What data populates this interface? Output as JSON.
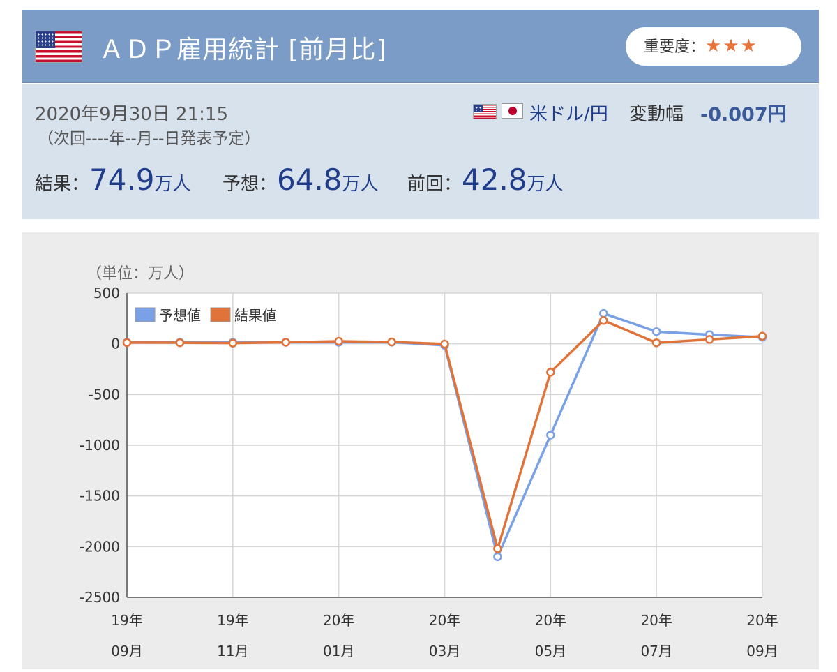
{
  "header": {
    "title": "ＡＤＰ雇用統計 [前月比]",
    "importance_label": "重要度：",
    "importance_stars": "★★★",
    "flag": "us-flag-icon"
  },
  "info": {
    "datetime": "2020年9月30日 21:15",
    "next_release": "（次回----年--月--日発表予定）",
    "pair": "米ドル/円",
    "volatility_label": "変動幅",
    "volatility_value": "-0.007円",
    "result_label": "結果：",
    "result_value": "74.9",
    "forecast_label": "予想：",
    "forecast_value": "64.8",
    "previous_label": "前回：",
    "previous_value": "42.8",
    "unit": "万人"
  },
  "chart_data": {
    "type": "line",
    "unit_label": "（単位：万人）",
    "ylim": [
      -2500,
      500
    ],
    "yticks": [
      500,
      0,
      -500,
      -1000,
      -1500,
      -2000,
      -2500
    ],
    "x_labels": [
      {
        "year": "19年",
        "month": "09月",
        "index": 0
      },
      {
        "year": "19年",
        "month": "11月",
        "index": 2
      },
      {
        "year": "20年",
        "month": "01月",
        "index": 4
      },
      {
        "year": "20年",
        "month": "03月",
        "index": 6
      },
      {
        "year": "20年",
        "month": "05月",
        "index": 8
      },
      {
        "year": "20年",
        "month": "07月",
        "index": 10
      },
      {
        "year": "20年",
        "month": "09月",
        "index": 12
      }
    ],
    "series": [
      {
        "name": "予想値",
        "color": "#7aa0e6",
        "values": [
          14,
          14,
          14,
          15,
          15,
          16,
          -15,
          -2100,
          -900,
          300,
          120,
          90,
          65
        ]
      },
      {
        "name": "結果値",
        "color": "#e0733a",
        "values": [
          12,
          11,
          7,
          15,
          25,
          18,
          -2,
          -2020,
          -280,
          230,
          10,
          43,
          75
        ]
      }
    ],
    "legend_position": "top-left",
    "grid": true
  }
}
